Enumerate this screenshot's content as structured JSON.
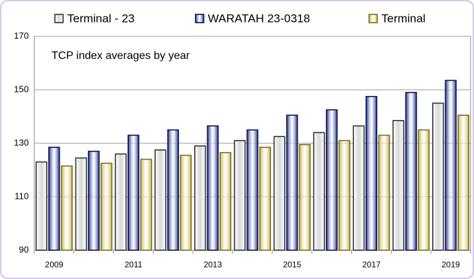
{
  "chart_data": {
    "type": "bar",
    "annotation": "TCP  index averages by year",
    "categories": [
      "2009",
      null,
      "2011",
      null,
      "2013",
      null,
      "2015",
      null,
      "2017",
      null,
      "2019"
    ],
    "series": [
      {
        "name": "Terminal - 23",
        "color": "#ffffff",
        "values": [
          123,
          124.5,
          126,
          127.5,
          129,
          131,
          132.5,
          134,
          136.5,
          138.5,
          145
        ]
      },
      {
        "name": "WARATAH 23-0318",
        "color": "#233391",
        "values": [
          128.5,
          127,
          133,
          135,
          136.5,
          135,
          140.5,
          142.5,
          147.5,
          149,
          153.5
        ]
      },
      {
        "name": "Terminal",
        "color": "#c9b94f",
        "values": [
          121.5,
          122.5,
          124,
          125.5,
          126.5,
          128.5,
          129.5,
          131,
          133,
          135,
          140.5
        ]
      }
    ],
    "ylim": [
      90,
      170
    ],
    "yticks": [
      90,
      110,
      130,
      150,
      170
    ],
    "grid": true,
    "legend": "top"
  }
}
